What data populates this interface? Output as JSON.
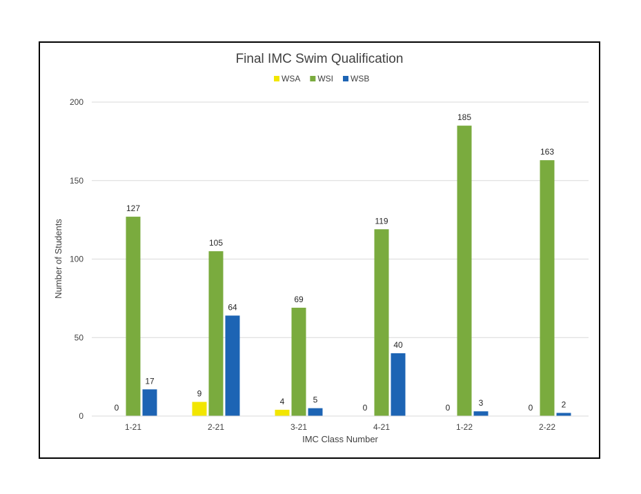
{
  "chart_data": {
    "type": "bar",
    "title": "Final IMC Swim Qualification",
    "xlabel": "IMC Class Number",
    "ylabel": "Number of Students",
    "categories": [
      "1-21",
      "2-21",
      "3-21",
      "4-21",
      "1-22",
      "2-22"
    ],
    "series": [
      {
        "name": "WSA",
        "color": "#f2e600",
        "values": [
          0,
          9,
          4,
          0,
          0,
          0
        ]
      },
      {
        "name": "WSI",
        "color": "#7aab3e",
        "values": [
          127,
          105,
          69,
          119,
          185,
          163
        ]
      },
      {
        "name": "WSB",
        "color": "#1d64b4",
        "values": [
          17,
          64,
          5,
          40,
          3,
          2
        ]
      }
    ],
    "ylim": [
      0,
      200
    ],
    "yticks": [
      0,
      50,
      100,
      150,
      200
    ],
    "grid": true,
    "legend": "top"
  }
}
